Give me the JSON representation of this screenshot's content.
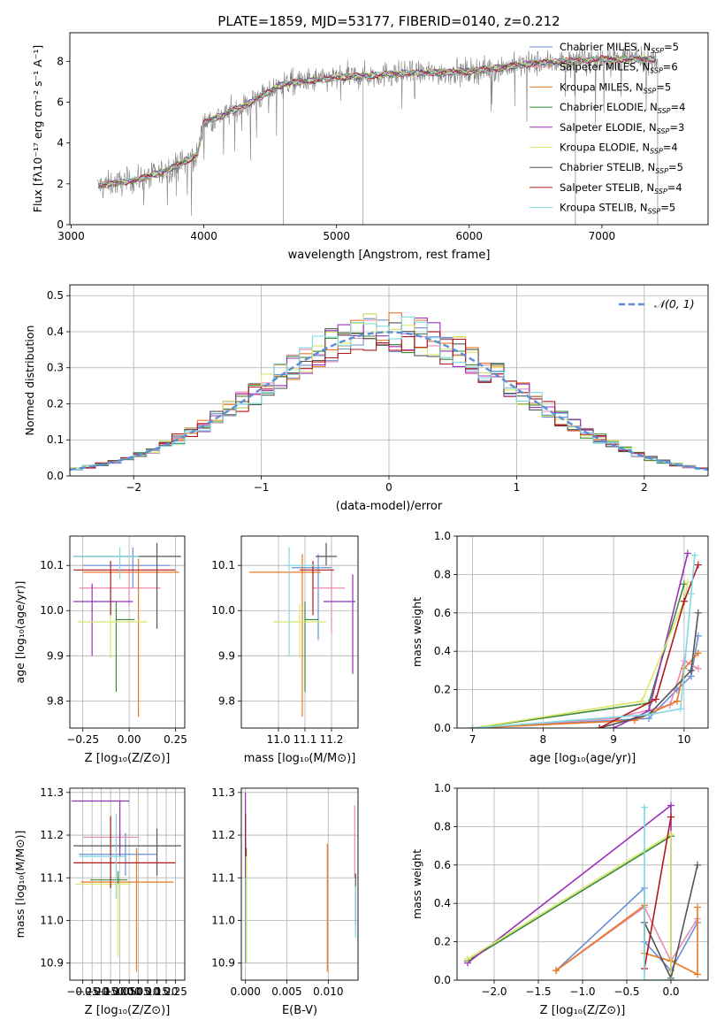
{
  "title": "PLATE=1859, MJD=53177, FIBERID=0140, z=0.212",
  "colors": {
    "grey": "#808080",
    "chabrier_miles": "#6a8fd8",
    "salpeter_miles": "#e98ab0",
    "kroupa_miles": "#e87822",
    "chabrier_elodie": "#3a8a3a",
    "salpeter_elodie": "#9b30b8",
    "kroupa_elodie": "#d8e86a",
    "chabrier_stelib": "#555555",
    "salpeter_stelib": "#b0181c",
    "kroupa_stelib": "#7fd8e0"
  },
  "legend_series": [
    {
      "main": "Chabrier MILES, N",
      "sub": "SSP",
      "suffix": "=5",
      "color": "#6a8fd8"
    },
    {
      "main": "Salpeter MILES, N",
      "sub": "SSP",
      "suffix": "=6",
      "color": "#e98ab0"
    },
    {
      "main": "Kroupa MILES, N",
      "sub": "SSP",
      "suffix": "=5",
      "color": "#e87822"
    },
    {
      "main": "Chabrier ELODIE, N",
      "sub": "SSP",
      "suffix": "=4",
      "color": "#3a8a3a"
    },
    {
      "main": "Salpeter ELODIE, N",
      "sub": "SSP",
      "suffix": "=3",
      "color": "#9b30b8"
    },
    {
      "main": "Kroupa ELODIE, N",
      "sub": "SSP",
      "suffix": "=4",
      "color": "#d8e86a"
    },
    {
      "main": "Chabrier STELIB, N",
      "sub": "SSP",
      "suffix": "=5",
      "color": "#555555"
    },
    {
      "main": "Salpeter STELIB, N",
      "sub": "SSP",
      "suffix": "=4",
      "color": "#b0181c"
    },
    {
      "main": "Kroupa STELIB, N",
      "sub": "SSP",
      "suffix": "=5",
      "color": "#7fd8e0"
    }
  ],
  "chart_data": [
    {
      "id": "spectrum",
      "type": "line",
      "xlabel": "wavelength [Angstrom, rest frame]",
      "ylabel": "Flux [fλ10⁻¹⁷ erg cm⁻² s⁻¹ A⁻¹]",
      "xlim": [
        2990,
        7800
      ],
      "ylim": [
        0,
        9.4
      ],
      "xticks": [
        3000,
        4000,
        5000,
        6000,
        7000
      ],
      "yticks": [
        0,
        2,
        4,
        6,
        8
      ],
      "x_range": [
        3200,
        7420
      ],
      "continuum_knots": [
        [
          3200,
          1.9
        ],
        [
          3500,
          2.2
        ],
        [
          3700,
          2.6
        ],
        [
          3950,
          3.4
        ],
        [
          4000,
          5.0
        ],
        [
          4300,
          5.8
        ],
        [
          4600,
          6.9
        ],
        [
          5000,
          7.2
        ],
        [
          5500,
          7.4
        ],
        [
          6000,
          7.5
        ],
        [
          6500,
          7.9
        ],
        [
          7000,
          8.1
        ],
        [
          7420,
          8.1
        ]
      ]
    },
    {
      "id": "residuals",
      "type": "line",
      "xlabel": "(data-model)/error",
      "ylabel": "Normed distribution",
      "xlim": [
        -2.5,
        2.5
      ],
      "ylim": [
        0,
        0.53
      ],
      "xticks": [
        -2,
        -1,
        0,
        1,
        2
      ],
      "yticks": [
        0.0,
        0.1,
        0.2,
        0.3,
        0.4,
        0.5
      ],
      "legend": "𝒩(0, 1)",
      "grid": true,
      "bin_width": 0.1
    },
    {
      "id": "age_vs_Z",
      "type": "scatter",
      "xlabel": "Z [log₁₀(Z/Z⊙)]",
      "ylabel": "age  [log₁₀(age/yr)]",
      "xlim": [
        -0.32,
        0.3
      ],
      "ylim": [
        9.74,
        10.165
      ],
      "xticks": [
        -0.25,
        0.0,
        0.25
      ],
      "yticks": [
        9.8,
        9.9,
        10.0,
        10.1
      ],
      "points": [
        {
          "x": 0.02,
          "y": 10.1,
          "x_err": [
            0.27,
            0.2
          ],
          "y_err": [
            0.05,
            0.04
          ],
          "color": "#6a8fd8"
        },
        {
          "x": 0.0,
          "y": 10.05,
          "x_err": [
            0.27,
            0.17
          ],
          "y_err": [
            0.04,
            0.04
          ],
          "color": "#e98ab0"
        },
        {
          "x": 0.05,
          "y": 10.085,
          "x_err": [
            0.3,
            0.22
          ],
          "y_err": [
            0.32,
            0.03
          ],
          "color": "#e87822"
        },
        {
          "x": -0.07,
          "y": 9.98,
          "x_err": [
            0.0,
            0.1
          ],
          "y_err": [
            0.16,
            0.04
          ],
          "color": "#3a8a3a"
        },
        {
          "x": -0.2,
          "y": 10.02,
          "x_err": [
            0.1,
            0.22
          ],
          "y_err": [
            0.12,
            0.04
          ],
          "color": "#9b30b8"
        },
        {
          "x": -0.1,
          "y": 9.975,
          "x_err": [
            0.18,
            0.2
          ],
          "y_err": [
            0.08,
            0.04
          ],
          "color": "#d8e86a"
        },
        {
          "x": 0.15,
          "y": 10.12,
          "x_err": [
            0.45,
            0.13
          ],
          "y_err": [
            0.16,
            0.03
          ],
          "color": "#555555"
        },
        {
          "x": -0.1,
          "y": 10.09,
          "x_err": [
            0.2,
            0.35
          ],
          "y_err": [
            0.1,
            0.02
          ],
          "color": "#b0181c"
        },
        {
          "x": -0.05,
          "y": 10.12,
          "x_err": [
            0.25,
            0.1
          ],
          "y_err": [
            0.05,
            0.02
          ],
          "color": "#7fd8e0"
        }
      ]
    },
    {
      "id": "age_vs_mass",
      "type": "scatter",
      "xlabel": "mass [log₁₀(M/M⊙)]",
      "ylabel": "",
      "xlim": [
        10.86,
        11.3
      ],
      "ylim": [
        9.74,
        10.165
      ],
      "xticks": [
        11.0,
        11.1,
        11.2
      ],
      "yticks": [
        9.8,
        9.9,
        10.0,
        10.1
      ],
      "points": [
        {
          "x": 11.15,
          "y": 10.095,
          "x_err": [
            0.1,
            0.05
          ],
          "y_err": [
            0.16,
            0.03
          ],
          "color": "#6a8fd8"
        },
        {
          "x": 11.2,
          "y": 10.05,
          "x_err": [
            0.07,
            0.05
          ],
          "y_err": [
            0.1,
            0.04
          ],
          "color": "#e98ab0"
        },
        {
          "x": 11.09,
          "y": 10.085,
          "x_err": [
            0.2,
            0.07
          ],
          "y_err": [
            0.32,
            0.04
          ],
          "color": "#e87822"
        },
        {
          "x": 11.1,
          "y": 9.98,
          "x_err": [
            0.0,
            0.05
          ],
          "y_err": [
            0.16,
            0.04
          ],
          "color": "#3a8a3a"
        },
        {
          "x": 11.28,
          "y": 10.02,
          "x_err": [
            0.11,
            0.01
          ],
          "y_err": [
            0.16,
            0.06
          ],
          "color": "#9b30b8"
        },
        {
          "x": 11.08,
          "y": 9.975,
          "x_err": [
            0.1,
            0.1
          ],
          "y_err": [
            0.08,
            0.04
          ],
          "color": "#d8e86a"
        },
        {
          "x": 11.18,
          "y": 10.12,
          "x_err": [
            0.04,
            0.04
          ],
          "y_err": [
            0.02,
            0.03
          ],
          "color": "#555555"
        },
        {
          "x": 11.13,
          "y": 10.09,
          "x_err": [
            0.05,
            0.08
          ],
          "y_err": [
            0.1,
            0.02
          ],
          "color": "#b0181c"
        },
        {
          "x": 11.04,
          "y": 10.1,
          "x_err": [
            0.01,
            0.1
          ],
          "y_err": [
            0.2,
            0.04
          ],
          "color": "#7fd8e0"
        }
      ]
    },
    {
      "id": "mass_weight_vs_age",
      "type": "line",
      "xlabel": "age  [log₁₀(age/yr)]",
      "ylabel": "mass weight",
      "xlim": [
        6.78,
        10.34
      ],
      "ylim": [
        0,
        1.0
      ],
      "xticks": [
        7,
        8,
        9,
        10
      ],
      "yticks": [
        0.0,
        0.2,
        0.4,
        0.6,
        0.8,
        1.0
      ],
      "series": [
        {
          "color": "#6a8fd8",
          "x": [
            7.0,
            9.5,
            9.9,
            10.1,
            10.2
          ],
          "y": [
            0.0,
            0.05,
            0.2,
            0.27,
            0.48
          ]
        },
        {
          "color": "#e98ab0",
          "x": [
            7.0,
            9.0,
            9.8,
            10.0,
            10.2
          ],
          "y": [
            0.0,
            0.05,
            0.12,
            0.35,
            0.31
          ]
        },
        {
          "color": "#e87822",
          "x": [
            7.0,
            9.3,
            9.9,
            10.0,
            10.2
          ],
          "y": [
            0.0,
            0.04,
            0.14,
            0.31,
            0.39
          ]
        },
        {
          "color": "#3a8a3a",
          "x": [
            7.0,
            9.5,
            10.0
          ],
          "y": [
            0.0,
            0.13,
            0.75
          ]
        },
        {
          "color": "#9b30b8",
          "x": [
            9.0,
            9.5,
            10.05
          ],
          "y": [
            0.0,
            0.09,
            0.91
          ]
        },
        {
          "color": "#d8e86a",
          "x": [
            7.0,
            9.4,
            10.0,
            10.05
          ],
          "y": [
            0.0,
            0.14,
            0.66,
            0.76
          ]
        },
        {
          "color": "#555555",
          "x": [
            8.8,
            9.5,
            10.1,
            10.2
          ],
          "y": [
            0.0,
            0.07,
            0.3,
            0.6
          ]
        },
        {
          "color": "#b0181c",
          "x": [
            8.8,
            9.6,
            10.0,
            10.2
          ],
          "y": [
            0.0,
            0.15,
            0.66,
            0.85
          ]
        },
        {
          "color": "#7fd8e0",
          "x": [
            7.0,
            9.5,
            9.95,
            10.1,
            10.15
          ],
          "y": [
            0.0,
            0.07,
            0.1,
            0.7,
            0.9
          ]
        }
      ]
    },
    {
      "id": "mass_vs_Z",
      "type": "scatter",
      "xlabel": "Z [log₁₀(Z/Z⊙)]",
      "ylabel": "mass [log₁₀(M/M⊙)]",
      "xlim": [
        -0.32,
        0.3
      ],
      "ylim": [
        10.86,
        11.31
      ],
      "xticks": [
        -0.25,
        -0.2,
        -0.15,
        -0.1,
        -0.05,
        0.0,
        0.05,
        0.1,
        0.15,
        0.2,
        0.25
      ],
      "xticklabels": [
        "−0.25",
        "−0.20",
        "−0.15",
        "−0.10",
        "−0.05",
        "0.00",
        "0.05",
        "0.10",
        "0.15",
        "0.20",
        "0.25"
      ],
      "yticks": [
        10.9,
        11.0,
        11.1,
        11.2,
        11.3
      ],
      "points": [
        {
          "x": -0.02,
          "y": 11.155,
          "x_err": [
            0.25,
            0.17
          ],
          "y_err": [
            0.05,
            0.05
          ],
          "color": "#6a8fd8"
        },
        {
          "x": -0.05,
          "y": 11.195,
          "x_err": [
            0.2,
            0.1
          ],
          "y_err": [
            0.03,
            0.02
          ],
          "color": "#e98ab0"
        },
        {
          "x": 0.04,
          "y": 11.09,
          "x_err": [
            0.3,
            0.2
          ],
          "y_err": [
            0.21,
            0.08
          ],
          "color": "#e87822"
        },
        {
          "x": -0.06,
          "y": 11.095,
          "x_err": [
            0.15,
            0.05
          ],
          "y_err": [
            0.02,
            0.02
          ],
          "color": "#3a8a3a"
        },
        {
          "x": -0.05,
          "y": 11.28,
          "x_err": [
            0.26,
            0.05
          ],
          "y_err": [
            0.13,
            0.0
          ],
          "color": "#9b30b8"
        },
        {
          "x": -0.06,
          "y": 11.085,
          "x_err": [
            0.23,
            0.07
          ],
          "y_err": [
            0.17,
            0.0
          ],
          "color": "#d8e86a"
        },
        {
          "x": 0.15,
          "y": 11.175,
          "x_err": [
            0.45,
            0.13
          ],
          "y_err": [
            0.07,
            0.04
          ],
          "color": "#555555"
        },
        {
          "x": -0.1,
          "y": 11.135,
          "x_err": [
            0.2,
            0.35
          ],
          "y_err": [
            0.06,
            0.11
          ],
          "color": "#b0181c"
        },
        {
          "x": -0.07,
          "y": 11.15,
          "x_err": [
            0.2,
            0.05
          ],
          "y_err": [
            0.1,
            0.1
          ],
          "color": "#7fd8e0"
        }
      ]
    },
    {
      "id": "mass_vs_EBV",
      "type": "scatter",
      "xlabel": "E(B-V)",
      "ylabel": "",
      "xlim": [
        -0.0005,
        0.0136
      ],
      "ylim": [
        10.86,
        11.31
      ],
      "xticks": [
        0.0,
        0.005,
        0.01
      ],
      "xticklabels": [
        "0.000",
        "0.005",
        "0.010"
      ],
      "yticks": [
        10.9,
        11.0,
        11.1,
        11.2,
        11.3
      ],
      "points": [
        {
          "x": 0.0,
          "y": 11.1,
          "y_err": [
            0.2,
            0.1
          ],
          "color": "#6a8fd8"
        },
        {
          "x": 0.0132,
          "y": 11.15,
          "y_err": [
            0.05,
            0.12
          ],
          "color": "#e98ab0"
        },
        {
          "x": 0.0099,
          "y": 11.03,
          "y_err": [
            0.15,
            0.15
          ],
          "color": "#e87822"
        },
        {
          "x": 0.0001,
          "y": 11.0,
          "y_err": [
            0.1,
            0.17
          ],
          "color": "#3a8a3a"
        },
        {
          "x": 0.0,
          "y": 11.2,
          "y_err": [
            0.1,
            0.1
          ],
          "color": "#9b30b8"
        },
        {
          "x": 0.0001,
          "y": 11.05,
          "y_err": [
            0.15,
            0.1
          ],
          "color": "#d8e86a"
        },
        {
          "x": 0.0133,
          "y": 11.05,
          "y_err": [
            0.06,
            0.06
          ],
          "color": "#555555"
        },
        {
          "x": 0.0,
          "y": 11.2,
          "y_err": [
            0.05,
            0.05
          ],
          "color": "#b0181c"
        },
        {
          "x": 0.0133,
          "y": 11.02,
          "y_err": [
            0.06,
            0.06
          ],
          "color": "#7fd8e0"
        }
      ]
    },
    {
      "id": "mass_weight_vs_Z",
      "type": "line",
      "xlabel": "Z [log₁₀(Z/Z⊙)]",
      "ylabel": "mass weight",
      "xlim": [
        -2.42,
        0.42
      ],
      "ylim": [
        0,
        1.0
      ],
      "xticks": [
        -2.0,
        -1.5,
        -1.0,
        -0.5,
        0.0
      ],
      "xticklabels": [
        "−2.0",
        "−1.5",
        "−1.0",
        "−0.5",
        "0.0"
      ],
      "yticks": [
        0.0,
        0.2,
        0.4,
        0.6,
        0.8,
        1.0
      ],
      "series": [
        {
          "color": "#6a8fd8",
          "x": [
            -1.3,
            -0.3,
            -0.3,
            0.0,
            0.3
          ],
          "y": [
            0.05,
            0.48,
            0.2,
            0.05,
            0.3
          ]
        },
        {
          "color": "#e98ab0",
          "x": [
            -1.3,
            -0.3,
            0.0,
            0.3
          ],
          "y": [
            0.05,
            0.38,
            0.1,
            0.32
          ]
        },
        {
          "color": "#e87822",
          "x": [
            -1.3,
            -0.3,
            -0.3,
            0.0,
            0.3,
            0.3
          ],
          "y": [
            0.05,
            0.39,
            0.14,
            0.1,
            0.03,
            0.38
          ]
        },
        {
          "color": "#3a8a3a",
          "x": [
            -2.3,
            0.0
          ],
          "y": [
            0.1,
            0.75
          ]
        },
        {
          "color": "#9b30b8",
          "x": [
            -2.3,
            0.0,
            0.0
          ],
          "y": [
            0.09,
            0.91,
            0.0
          ]
        },
        {
          "color": "#d8e86a",
          "x": [
            -2.3,
            0.0,
            0.0
          ],
          "y": [
            0.11,
            0.76,
            0.0
          ]
        },
        {
          "color": "#555555",
          "x": [
            -0.3,
            0.0,
            0.3
          ],
          "y": [
            0.3,
            0.01,
            0.6
          ]
        },
        {
          "color": "#b0181c",
          "x": [
            -0.3,
            0.0
          ],
          "y": [
            0.06,
            0.85
          ]
        },
        {
          "color": "#7fd8e0",
          "x": [
            -0.3,
            -0.3,
            0.0
          ],
          "y": [
            0.9,
            0.0,
            0.0
          ]
        }
      ]
    }
  ]
}
